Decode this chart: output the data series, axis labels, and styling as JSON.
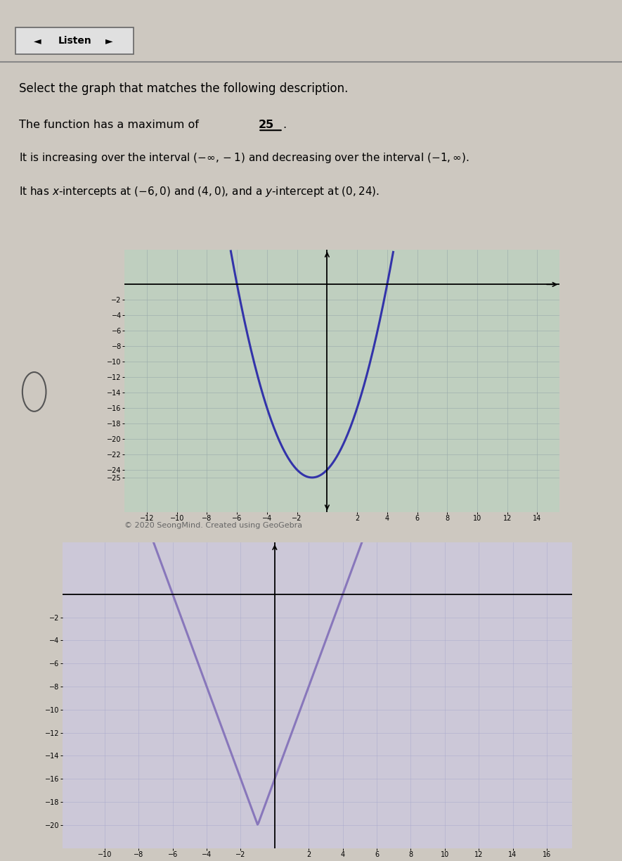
{
  "title_text": "Select the graph that matches the following description.",
  "desc_line1": "The function has a maximum of 25.",
  "desc_line2_a": "It is increasing over the interval ",
  "desc_line2_b": " and decreasing over the interval ",
  "desc_line3": "It has x-intercepts at (-6, 0) and (4, 0), and a y-intercept at (0, 24).",
  "copyright": "© 2020 SeongMind. Created using GeoGebra",
  "background_color": "#cdc8c0",
  "graph1_bg": "#bfcfbf",
  "graph2_bg": "#ccc8d8",
  "curve_color1": "#3333aa",
  "curve_color2": "#8877bb",
  "graph1_xlim": [
    -13.5,
    15.5
  ],
  "graph1_ylim": [
    -29.5,
    4.5
  ],
  "graph1_xtick_vals": [
    -12,
    -10,
    -8,
    -6,
    -4,
    -2,
    2,
    4,
    6,
    8,
    10,
    12,
    14
  ],
  "graph1_ytick_vals": [
    -2,
    -4,
    -6,
    -8,
    -10,
    -12,
    -14,
    -16,
    -18,
    -20,
    -22,
    -24,
    -25
  ],
  "graph2_xlim": [
    -12.5,
    17.5
  ],
  "graph2_ylim": [
    -22,
    4.5
  ],
  "graph2_xtick_vals": [
    -10,
    -8,
    -6,
    -4,
    -2,
    2,
    4,
    6,
    8,
    10,
    12,
    14,
    16
  ],
  "graph2_ytick_vals": [
    -2,
    -4,
    -6,
    -8,
    -10,
    -12,
    -14,
    -16,
    -18,
    -20
  ]
}
